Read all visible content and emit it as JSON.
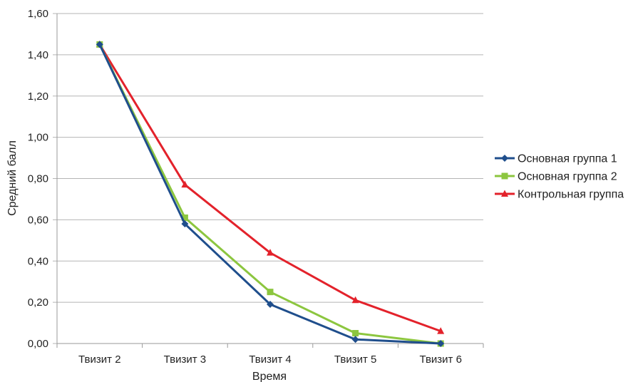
{
  "chart_data": {
    "type": "line",
    "title": "",
    "xlabel": "Время",
    "ylabel": "Средний балл",
    "categories": [
      "Твизит 2",
      "Твизит 3",
      "Твизит 4",
      "Твизит 5",
      "Твизит 6"
    ],
    "ylim": [
      0,
      1.6
    ],
    "yticks": [
      "0,00",
      "0,20",
      "0,40",
      "0,60",
      "0,80",
      "1,00",
      "1,20",
      "1,40",
      "1,60"
    ],
    "grid": true,
    "legend_position": "right",
    "series": [
      {
        "name": "Основная группа 1",
        "values": [
          1.45,
          0.58,
          0.19,
          0.02,
          0.0
        ],
        "color": "#1f4e8c",
        "marker": "diamond"
      },
      {
        "name": "Основная группа 2",
        "values": [
          1.45,
          0.61,
          0.25,
          0.05,
          0.0
        ],
        "color": "#8cc63f",
        "marker": "square"
      },
      {
        "name": "Контрольная группа",
        "values": [
          1.45,
          0.77,
          0.44,
          0.21,
          0.06
        ],
        "color": "#e3222b",
        "marker": "triangle"
      }
    ]
  }
}
